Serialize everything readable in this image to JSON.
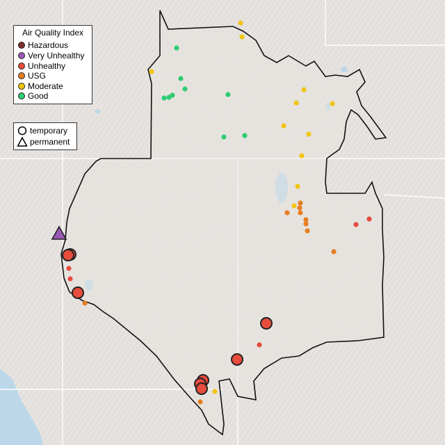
{
  "legend": {
    "title": "Air Quality Index",
    "items": [
      {
        "label": "Hazardous",
        "color": "#7e2f2f"
      },
      {
        "label": "Very Unhealthy",
        "color": "#9b59b6"
      },
      {
        "label": "Unhealthy",
        "color": "#e74c3c"
      },
      {
        "label": "USG",
        "color": "#e67e22"
      },
      {
        "label": "Moderate",
        "color": "#f1c40f"
      },
      {
        "label": "Good",
        "color": "#2ecc71"
      }
    ]
  },
  "monitor_types": {
    "temporary": {
      "label": "temporary",
      "icon": "circle-icon"
    },
    "permanent": {
      "label": "permanent",
      "icon": "triangle-icon"
    }
  },
  "colors": {
    "background": "#e6e3e1",
    "water": "#bcd7ea",
    "boundary": "#111111",
    "state_line": "#ffffff"
  }
}
